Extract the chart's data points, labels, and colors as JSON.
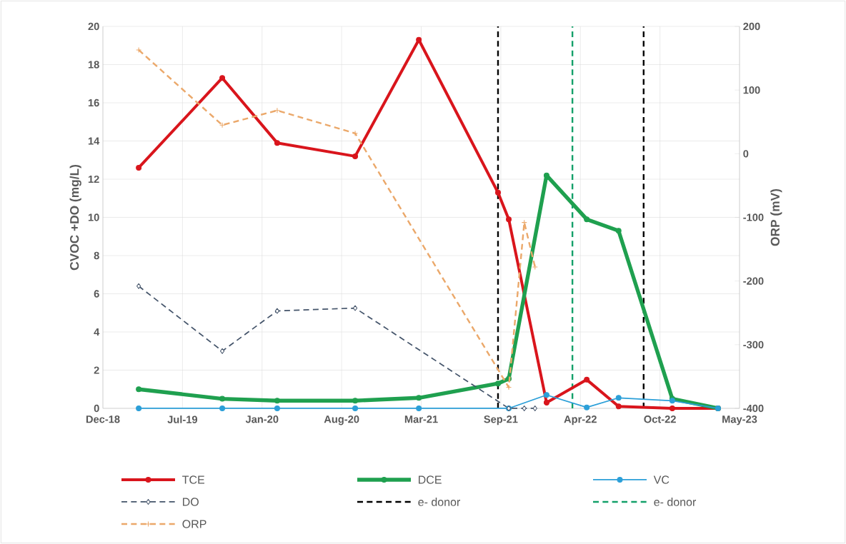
{
  "chart_data": {
    "type": "line",
    "ylabel": "CVOC +DO (mg/L)",
    "y2label": "ORP (mV)",
    "xlim": [
      "2018-12-25",
      "2023-05-13"
    ],
    "xticks": [
      {
        "value": "2018-12-25",
        "label": "Dec-18"
      },
      {
        "value": "2019-07-13",
        "label": "Jul-19"
      },
      {
        "value": "2020-01-29",
        "label": "Jan-20"
      },
      {
        "value": "2020-08-16",
        "label": "Aug-20"
      },
      {
        "value": "2021-03-04",
        "label": "Mar-21"
      },
      {
        "value": "2021-09-20",
        "label": "Sep-21"
      },
      {
        "value": "2022-04-08",
        "label": "Apr-22"
      },
      {
        "value": "2022-10-25",
        "label": "Oct-22"
      },
      {
        "value": "2023-05-13",
        "label": "May-23"
      }
    ],
    "ylim": [
      0,
      20
    ],
    "yticks": [
      0,
      2,
      4,
      6,
      8,
      10,
      12,
      14,
      16,
      18,
      20
    ],
    "y2lim": [
      -400,
      200
    ],
    "y2ticks": [
      -400,
      -300,
      -200,
      -100,
      0,
      100,
      200
    ],
    "grid": true,
    "legend": "bottom",
    "series": [
      {
        "name": "TCE",
        "color": "#d9151c",
        "marker": "circle",
        "line_style": "solid",
        "x": [
          "2019-03-25",
          "2019-10-21",
          "2020-03-07",
          "2020-09-19",
          "2021-02-26",
          "2021-09-13",
          "2021-10-10",
          "2022-01-13",
          "2022-04-24",
          "2022-07-13",
          "2022-11-25",
          "2023-03-20"
        ],
        "values": [
          12.6,
          17.3,
          13.9,
          13.2,
          19.3,
          11.3,
          9.9,
          0.3,
          1.5,
          0.1,
          0.0,
          0.0
        ]
      },
      {
        "name": "DCE",
        "color": "#1fa04f",
        "marker": "circle",
        "line_style": "solid",
        "x": [
          "2019-03-25",
          "2019-10-21",
          "2020-03-07",
          "2020-09-19",
          "2021-02-26",
          "2021-09-13",
          "2021-10-10",
          "2022-01-13",
          "2022-04-24",
          "2022-07-13",
          "2022-11-25",
          "2023-03-20"
        ],
        "values": [
          1.0,
          0.5,
          0.4,
          0.4,
          0.55,
          1.3,
          1.55,
          12.2,
          9.9,
          9.3,
          0.5,
          0.0
        ]
      },
      {
        "name": "VC",
        "color": "#2b9fd8",
        "marker": "circle",
        "line_style": "solid",
        "x": [
          "2019-03-25",
          "2019-10-21",
          "2020-03-07",
          "2020-09-19",
          "2021-02-26",
          "2021-10-10",
          "2022-01-13",
          "2022-04-24",
          "2022-07-13",
          "2022-11-25",
          "2023-03-20"
        ],
        "values": [
          0,
          0,
          0,
          0,
          0,
          0,
          0.7,
          0.05,
          0.55,
          0.4,
          0
        ]
      },
      {
        "name": "DO",
        "color": "#44546a",
        "marker": "diamond",
        "line_style": "dashed",
        "x": [
          "2019-03-25",
          "2019-10-21",
          "2020-03-07",
          "2020-09-19",
          "2021-10-10",
          "2021-11-18",
          "2021-12-15"
        ],
        "values": [
          6.4,
          3.0,
          5.1,
          5.25,
          0,
          0,
          0
        ]
      },
      {
        "name": "ORP",
        "color": "#eba86a",
        "marker": "cross",
        "line_style": "dashed",
        "axis": "y2",
        "x": [
          "2019-03-25",
          "2019-10-21",
          "2020-03-07",
          "2020-09-19",
          "2021-10-10",
          "2021-11-18",
          "2021-12-15"
        ],
        "values": [
          163,
          45,
          68,
          32,
          -367,
          -108,
          -178
        ]
      }
    ],
    "ref_lines": [
      {
        "axis": "x",
        "value": "2021-09-13",
        "label": "e- donor",
        "color": "#000000",
        "line_style": "dashed"
      },
      {
        "axis": "x",
        "value": "2022-03-19",
        "label": "e- donor",
        "color": "#13a069",
        "line_style": "dashed"
      },
      {
        "axis": "x",
        "value": "2022-09-14",
        "color": "#000000",
        "line_style": "dashed"
      }
    ]
  }
}
